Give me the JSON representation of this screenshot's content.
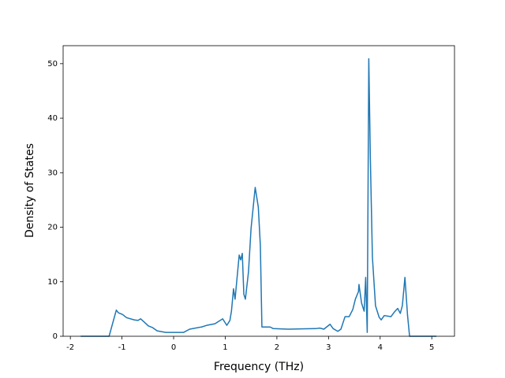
{
  "chart_data": {
    "type": "line",
    "x_label": "Frequency (THz)",
    "y_label": "Density of States",
    "xlim": [
      -2.14,
      5.44
    ],
    "ylim": [
      0,
      53.3
    ],
    "xticks": [
      -2,
      -1,
      0,
      1,
      2,
      3,
      4,
      5
    ],
    "yticks": [
      0,
      10,
      20,
      30,
      40,
      50
    ],
    "x": [
      -1.8,
      -1.25,
      -1.11,
      -1.07,
      -0.99,
      -0.91,
      -0.76,
      -0.69,
      -0.64,
      -0.58,
      -0.49,
      -0.41,
      -0.32,
      -0.15,
      0.19,
      0.31,
      0.54,
      0.64,
      0.8,
      0.95,
      1.03,
      1.09,
      1.12,
      1.16,
      1.19,
      1.27,
      1.3,
      1.33,
      1.36,
      1.39,
      1.45,
      1.5,
      1.58,
      1.64,
      1.68,
      1.71,
      1.87,
      1.93,
      2.22,
      2.75,
      2.83,
      2.91,
      3.03,
      3.09,
      3.18,
      3.24,
      3.32,
      3.4,
      3.47,
      3.52,
      3.58,
      3.59,
      3.64,
      3.69,
      3.72,
      3.75,
      3.78,
      3.81,
      3.85,
      3.91,
      3.98,
      4.02,
      4.08,
      4.21,
      4.28,
      4.34,
      4.39,
      4.43,
      4.48,
      4.53,
      4.57,
      5.09
    ],
    "series": [
      {
        "color": "#1f77b4",
        "values": [
          0,
          0,
          4.8,
          4.3,
          4.0,
          3.4,
          3.0,
          2.9,
          3.2,
          2.7,
          1.9,
          1.6,
          1.0,
          0.7,
          0.7,
          1.3,
          1.7,
          2.0,
          2.3,
          3.2,
          2.0,
          2.9,
          4.6,
          8.7,
          6.8,
          14.9,
          14.0,
          15.2,
          7.7,
          6.8,
          11.8,
          19.8,
          27.3,
          23.7,
          16.6,
          1.7,
          1.7,
          1.4,
          1.3,
          1.4,
          1.5,
          1.3,
          2.2,
          1.4,
          0.9,
          1.3,
          3.6,
          3.6,
          4.9,
          6.8,
          8.2,
          9.5,
          6.1,
          4.6,
          10.8,
          0.7,
          50.9,
          32.8,
          14.5,
          5.6,
          3.5,
          3.0,
          3.8,
          3.6,
          4.5,
          5.1,
          4.2,
          5.6,
          10.8,
          3.9,
          0,
          0
        ]
      }
    ]
  }
}
